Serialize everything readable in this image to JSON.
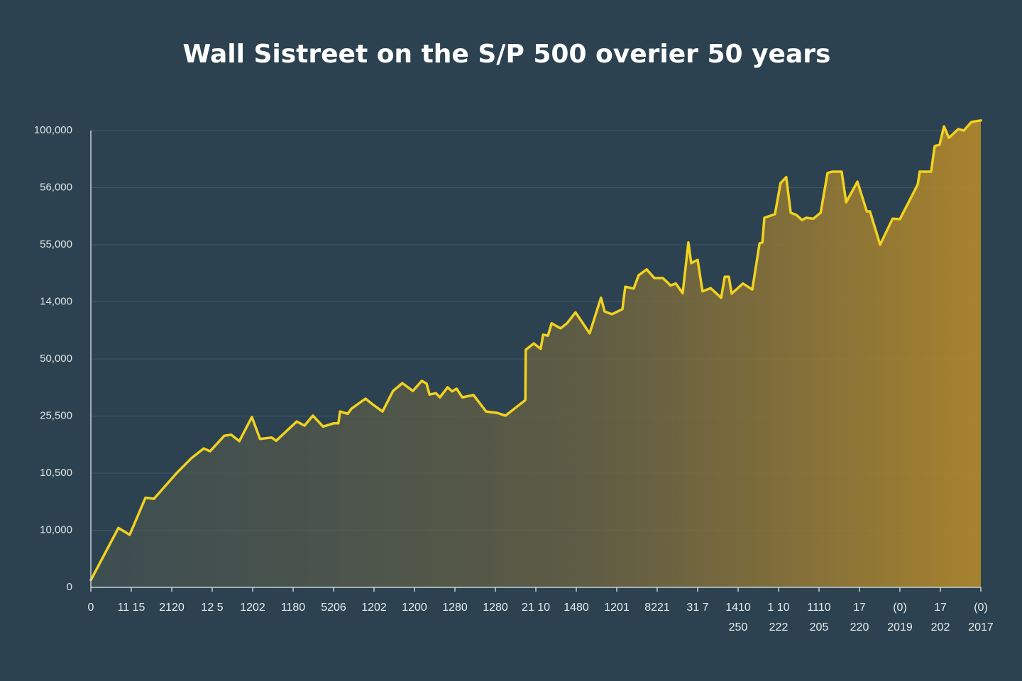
{
  "chart_data": {
    "type": "area",
    "title": "Wall Sistreet on the S/P 500 overier 50 years",
    "color": "#f2d21f",
    "grid": true,
    "xlim": [
      0,
      22
    ],
    "ylim": [
      0,
      100000
    ],
    "yticks": [
      0,
      {
        "value": 12500,
        "label": "10,000"
      },
      {
        "value": 25000,
        "label": "10,500"
      },
      {
        "value": 37500,
        "label": "25,500"
      },
      {
        "value": 50000,
        "label": "50,000"
      },
      {
        "value": 62500,
        "label": "14,000"
      },
      {
        "value": 75000,
        "label": "55,000"
      },
      {
        "value": 87500,
        "label": "56,000"
      },
      {
        "value": 100000,
        "label": "100,000"
      }
    ],
    "xticks": [
      0,
      {
        "value": 1,
        "label": "11 15"
      },
      {
        "value": 2,
        "label": "2120"
      },
      {
        "value": 3,
        "label": "12 5"
      },
      {
        "value": 4,
        "label": "1202"
      },
      {
        "value": 5,
        "label": "1180"
      },
      {
        "value": 6,
        "label": "5206"
      },
      {
        "value": 7,
        "label": "1202"
      },
      {
        "value": 8,
        "label": "1200"
      },
      {
        "value": 9,
        "label": "1280"
      },
      {
        "value": 10,
        "label": "1280"
      },
      {
        "value": 11,
        "label": "21 10"
      },
      {
        "value": 12,
        "label": "1480"
      },
      {
        "value": 13,
        "label": "1201"
      },
      {
        "value": 14,
        "label": "8221"
      },
      {
        "value": 15,
        "label": "31 7"
      },
      {
        "value": 16,
        "label": "1410",
        "label2": "250"
      },
      {
        "value": 17,
        "label": "1 10",
        "label2": "222"
      },
      {
        "value": 18,
        "label": "1110",
        "label2": "205"
      },
      {
        "value": 19,
        "label": "17",
        "label2": "220"
      },
      {
        "value": 20,
        "label": "(0)",
        "label2": "2019"
      },
      {
        "value": 21,
        "label": "17",
        "label2": "202"
      },
      {
        "value": 22,
        "label": "(0)",
        "label2": "2017"
      }
    ],
    "x": [
      0,
      0.68,
      0.96,
      1.35,
      1.56,
      2.14,
      2.49,
      2.79,
      2.95,
      3.3,
      3.47,
      3.67,
      3.98,
      4.18,
      4.47,
      4.58,
      5.09,
      5.28,
      5.49,
      5.74,
      6.0,
      6.12,
      6.16,
      6.35,
      6.44,
      6.79,
      6.96,
      7.21,
      7.47,
      7.7,
      7.96,
      8.18,
      8.3,
      8.37,
      8.53,
      8.63,
      8.82,
      8.93,
      9.04,
      9.18,
      9.46,
      9.77,
      10.04,
      10.25,
      10.74,
      10.75,
      10.95,
      11.12,
      11.18,
      11.3,
      11.39,
      11.61,
      11.77,
      11.98,
      12.33,
      12.61,
      12.7,
      12.88,
      13.14,
      13.21,
      13.42,
      13.54,
      13.74,
      13.93,
      14.14,
      14.33,
      14.46,
      14.63,
      14.77,
      14.84,
      15.0,
      15.12,
      15.32,
      15.58,
      15.67,
      15.77,
      15.84,
      16.12,
      16.35,
      16.53,
      16.6,
      16.65,
      16.91,
      17.05,
      17.19,
      17.3,
      17.44,
      17.58,
      17.68,
      17.86,
      18.04,
      18.21,
      18.32,
      18.56,
      18.67,
      18.95,
      19.18,
      19.26,
      19.51,
      19.82,
      20.0,
      20.44,
      20.49,
      20.77,
      20.86,
      20.98,
      21.09,
      21.21,
      21.44,
      21.58,
      21.77,
      22.0
    ],
    "values": [
      1600,
      13000,
      11500,
      19600,
      19400,
      25200,
      28300,
      30400,
      29800,
      33200,
      33400,
      32000,
      37300,
      32500,
      32800,
      32100,
      36300,
      35400,
      37600,
      35200,
      35900,
      35900,
      38500,
      38000,
      39100,
      41300,
      40100,
      38500,
      43000,
      44700,
      43000,
      45200,
      44600,
      42200,
      42500,
      41600,
      43800,
      42900,
      43500,
      41600,
      42100,
      38500,
      38200,
      37600,
      41000,
      52000,
      53400,
      52200,
      55300,
      55100,
      57800,
      56700,
      57800,
      60200,
      55600,
      63400,
      60400,
      59800,
      60900,
      65800,
      65400,
      68300,
      69600,
      67700,
      67700,
      66100,
      66500,
      64400,
      75500,
      71000,
      71700,
      64800,
      65500,
      63400,
      68000,
      68000,
      64300,
      66500,
      65200,
      75300,
      75500,
      80900,
      81700,
      88500,
      89800,
      82000,
      81500,
      80400,
      80900,
      80700,
      82000,
      90700,
      91000,
      91000,
      84300,
      88800,
      82300,
      82300,
      75000,
      80700,
      80600,
      88200,
      91000,
      91000,
      96600,
      96900,
      100900,
      98400,
      100300,
      100000,
      101900,
      102200
    ]
  }
}
